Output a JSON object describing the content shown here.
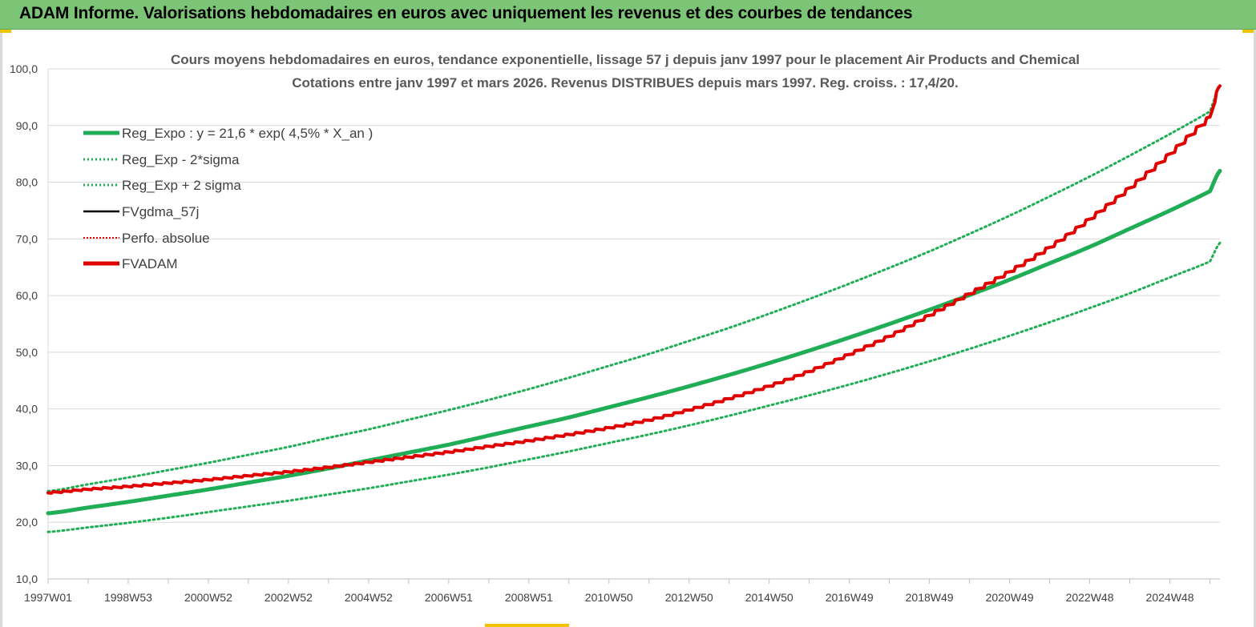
{
  "banner": {
    "title": "ADAM Informe. Valorisations hebdomadaires en euros avec uniquement les revenus et des courbes de tendances"
  },
  "colors": {
    "banner_bg": "#7cc576",
    "reg_expo": "#1fae55",
    "fvadam": "#e00000",
    "fvgdma": "#000000",
    "grid": "#d9d9d9"
  },
  "chart_data": {
    "type": "line",
    "title": "Cours moyens hebdomadaires en euros, tendance exponentielle, lissage 57 j depuis janv 1997  pour le placement Air Products and Chemical",
    "subtitle": "Cotations entre janv 1997 et mars 2026. Revenus DISTRIBUES depuis mars 1997. Reg. croiss. : 17,4/20.",
    "xlabel": "",
    "ylabel": "",
    "ylim": [
      10,
      100
    ],
    "yticks": [
      "10,0",
      "20,0",
      "30,0",
      "40,0",
      "50,0",
      "60,0",
      "70,0",
      "80,0",
      "90,0",
      "100,0"
    ],
    "xlim": [
      1997.0,
      2026.25
    ],
    "xticks": [
      "1997W01",
      "1998W53",
      "2000W52",
      "2002W52",
      "2004W52",
      "2006W51",
      "2008W51",
      "2010W50",
      "2012W50",
      "2014W50",
      "2016W49",
      "2018W49",
      "2020W49",
      "2022W48",
      "2024W48"
    ],
    "xtick_years": [
      1997.0,
      1999.0,
      2001.0,
      2003.0,
      2005.0,
      2007.0,
      2009.0,
      2011.0,
      2013.0,
      2015.0,
      2017.0,
      2019.0,
      2021.0,
      2023.0,
      2025.0
    ],
    "grid": "horizontal",
    "legend_position": "top-left",
    "x": [
      1997.0,
      1998.0,
      1999.0,
      2000.0,
      2001.0,
      2002.0,
      2003.0,
      2004.0,
      2005.0,
      2006.0,
      2007.0,
      2008.0,
      2009.0,
      2010.0,
      2011.0,
      2012.0,
      2013.0,
      2014.0,
      2015.0,
      2016.0,
      2017.0,
      2018.0,
      2019.0,
      2020.0,
      2021.0,
      2022.0,
      2023.0,
      2024.0,
      2025.0,
      2026.0,
      2026.25
    ],
    "series": [
      {
        "name": "Reg_Expo : y = 21,6 * exp( 4,5% *  X_an )",
        "style": "thick-solid-green",
        "values": [
          21.6,
          22.6,
          23.6,
          24.7,
          25.8,
          27.0,
          28.2,
          29.5,
          30.9,
          32.3,
          33.7,
          35.3,
          36.9,
          38.5,
          40.3,
          42.1,
          44.0,
          46.0,
          48.1,
          50.3,
          52.6,
          55.0,
          57.5,
          60.1,
          62.8,
          65.7,
          68.6,
          71.8,
          75.0,
          78.4,
          82.0
        ]
      },
      {
        "name": "Reg_Exp - 2*sigma",
        "style": "dotted-green",
        "values": [
          18.3,
          19.1,
          19.9,
          20.8,
          21.8,
          22.8,
          23.8,
          24.9,
          26.0,
          27.2,
          28.4,
          29.7,
          31.1,
          32.5,
          34.0,
          35.5,
          37.1,
          38.8,
          40.6,
          42.4,
          44.3,
          46.3,
          48.4,
          50.6,
          52.9,
          55.3,
          57.8,
          60.4,
          63.2,
          66.0,
          69.3
        ]
      },
      {
        "name": "Reg_Exp + 2 sigma",
        "style": "dotted-green",
        "values": [
          25.5,
          26.7,
          27.9,
          29.2,
          30.5,
          31.9,
          33.3,
          34.9,
          36.4,
          38.1,
          39.8,
          41.6,
          43.5,
          45.5,
          47.6,
          49.7,
          52.0,
          54.3,
          56.8,
          59.4,
          62.1,
          64.9,
          67.8,
          70.9,
          74.1,
          77.5,
          81.0,
          84.7,
          88.5,
          92.5,
          97.0
        ]
      },
      {
        "name": "FVgdma_57j",
        "style": "thin-solid-black",
        "values": [
          25.2,
          25.8,
          26.3,
          26.9,
          27.5,
          28.2,
          28.9,
          29.7,
          30.6,
          31.5,
          32.4,
          33.4,
          34.4,
          35.5,
          36.7,
          38.0,
          39.8,
          41.8,
          44.0,
          46.6,
          49.6,
          52.8,
          56.5,
          60.3,
          64.2,
          68.5,
          73.5,
          79.0,
          85.0,
          91.5,
          97.0
        ]
      },
      {
        "name": "Perfo. absolue",
        "style": "dotted-red",
        "values": [
          25.2,
          25.8,
          26.3,
          26.9,
          27.5,
          28.2,
          28.9,
          29.7,
          30.6,
          31.5,
          32.4,
          33.4,
          34.4,
          35.5,
          36.7,
          38.0,
          39.8,
          41.8,
          44.0,
          46.6,
          49.6,
          52.8,
          56.5,
          60.3,
          64.2,
          68.5,
          73.5,
          79.0,
          85.0,
          91.5,
          97.0
        ]
      },
      {
        "name": "FVADAM",
        "style": "thick-solid-red",
        "values": [
          25.2,
          25.8,
          26.3,
          26.9,
          27.5,
          28.2,
          28.9,
          29.7,
          30.6,
          31.5,
          32.4,
          33.4,
          34.4,
          35.5,
          36.7,
          38.0,
          39.8,
          41.8,
          44.0,
          46.6,
          49.6,
          52.8,
          56.5,
          60.3,
          64.2,
          68.5,
          73.5,
          79.0,
          85.0,
          91.5,
          97.0
        ]
      }
    ]
  }
}
